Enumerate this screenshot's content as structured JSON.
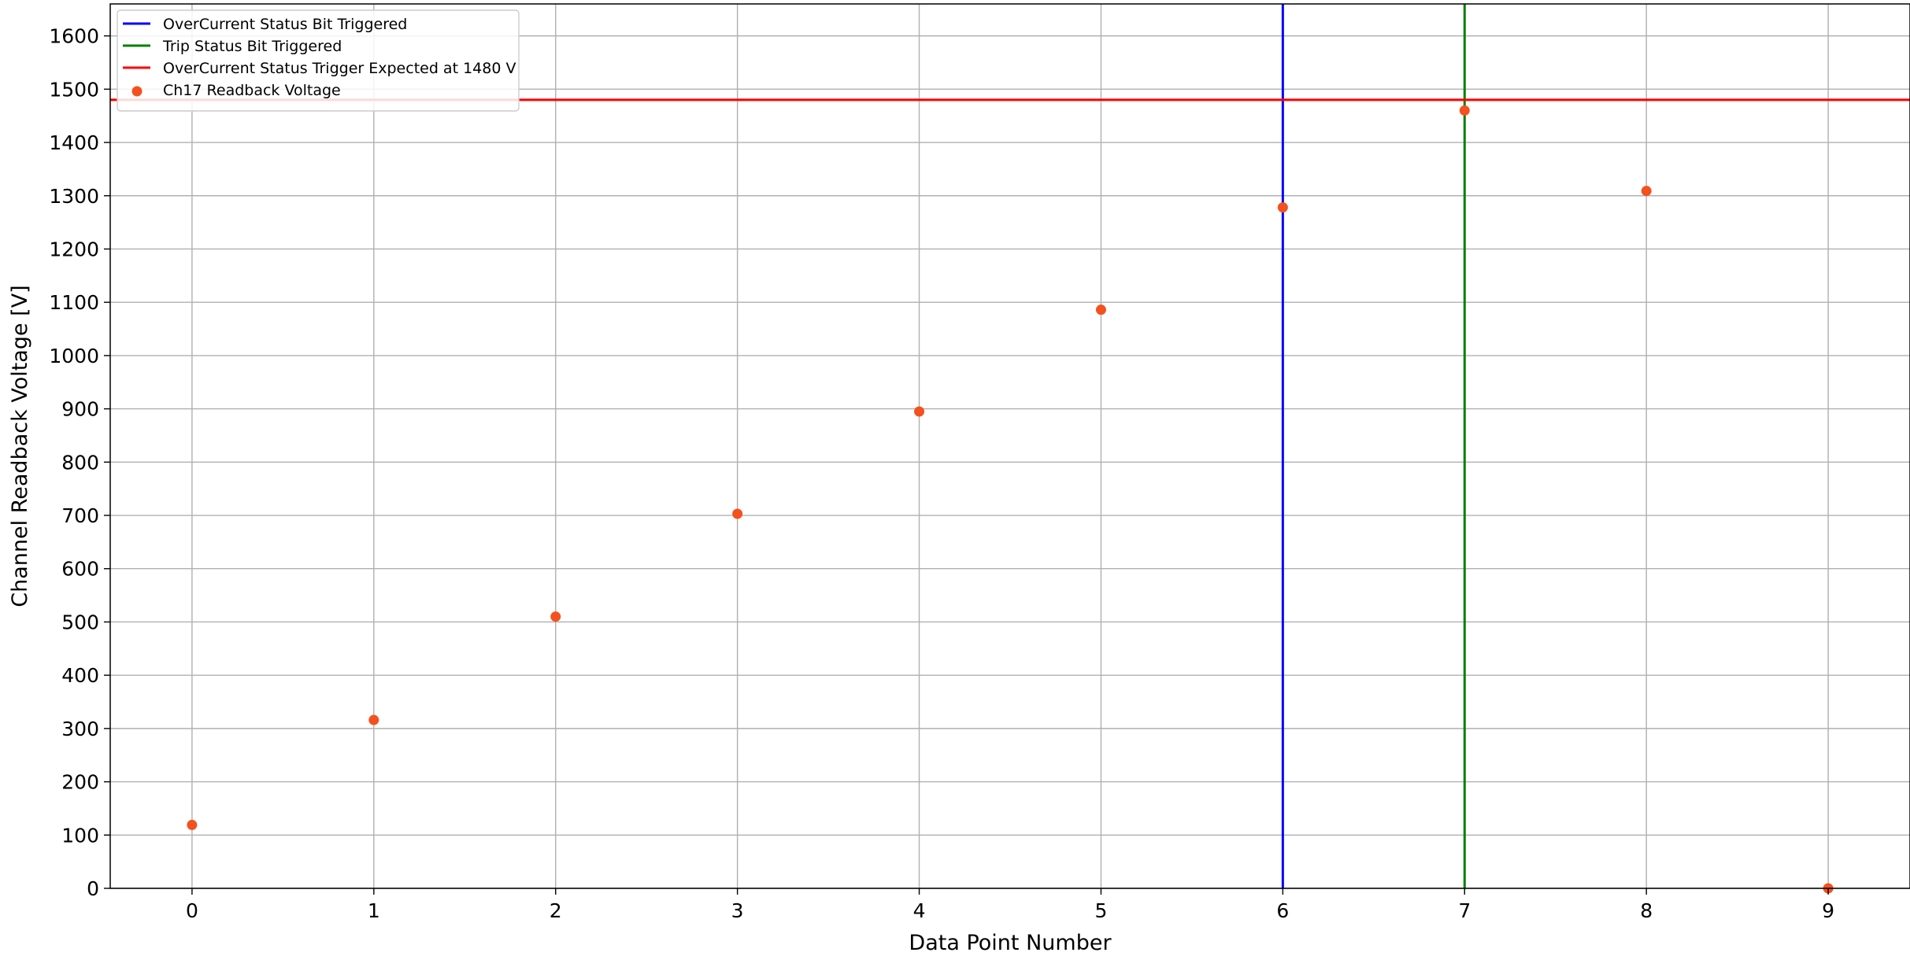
{
  "chart_data": {
    "type": "scatter",
    "xlabel": "Data Point Number",
    "ylabel": "Channel Readback Voltage [V]",
    "xlim": [
      -0.45,
      9.45
    ],
    "ylim": [
      0,
      1660
    ],
    "xticks": [
      0,
      1,
      2,
      3,
      4,
      5,
      6,
      7,
      8,
      9
    ],
    "yticks": [
      0,
      100,
      200,
      300,
      400,
      500,
      600,
      700,
      800,
      900,
      1000,
      1100,
      1200,
      1300,
      1400,
      1500,
      1600
    ],
    "grid": true,
    "legend_position": "top-left",
    "series": [
      {
        "name": "Ch17 Readback Voltage",
        "kind": "scatter",
        "color": "#f4511e",
        "x": [
          0,
          1,
          2,
          3,
          4,
          5,
          6,
          7,
          8,
          9
        ],
        "y": [
          119,
          316,
          510,
          703,
          895,
          1086,
          1278,
          1460,
          1309,
          0
        ]
      }
    ],
    "reference_lines": [
      {
        "name": "OverCurrent Status Bit Triggered",
        "orientation": "vertical",
        "value": 6,
        "color": "#0000ff"
      },
      {
        "name": "Trip Status Bit Triggered",
        "orientation": "vertical",
        "value": 7,
        "color": "#008000"
      },
      {
        "name": "OverCurrent Status Trigger Expected at 1480 V",
        "orientation": "horizontal",
        "value": 1480,
        "color": "#ff0000"
      }
    ],
    "legend": [
      {
        "label": "OverCurrent Status Bit Triggered",
        "marker": "line",
        "color": "#0000ff"
      },
      {
        "label": "Trip Status Bit Triggered",
        "marker": "line",
        "color": "#008000"
      },
      {
        "label": "OverCurrent Status Trigger Expected at 1480 V",
        "marker": "line",
        "color": "#ff0000"
      },
      {
        "label": "Ch17 Readback Voltage",
        "marker": "dot",
        "color": "#f4511e"
      }
    ]
  }
}
